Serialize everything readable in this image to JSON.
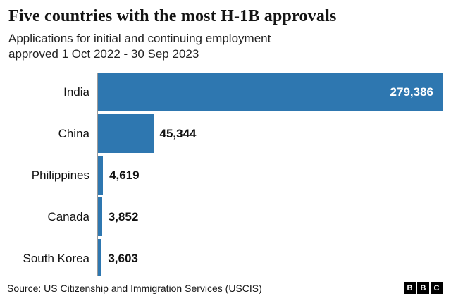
{
  "chart_data": {
    "type": "bar",
    "orientation": "horizontal",
    "title": "Five countries with the most H-1B approvals",
    "subtitle": "Applications for initial and continuing employment\napproved 1 Oct 2022 - 30 Sep 2023",
    "categories": [
      "India",
      "China",
      "Philippines",
      "Canada",
      "South Korea"
    ],
    "values": [
      279386,
      45344,
      4619,
      3852,
      3603
    ],
    "value_labels": [
      "279,386",
      "45,344",
      "4,619",
      "3,852",
      "3,603"
    ],
    "xlim": [
      0,
      279386
    ],
    "bar_color": "#2e77b0",
    "grid": false,
    "legend": false
  },
  "footer": {
    "source": "Source: US Citizenship and Immigration Services (USCIS)",
    "logo_letters": [
      "B",
      "B",
      "C"
    ]
  }
}
